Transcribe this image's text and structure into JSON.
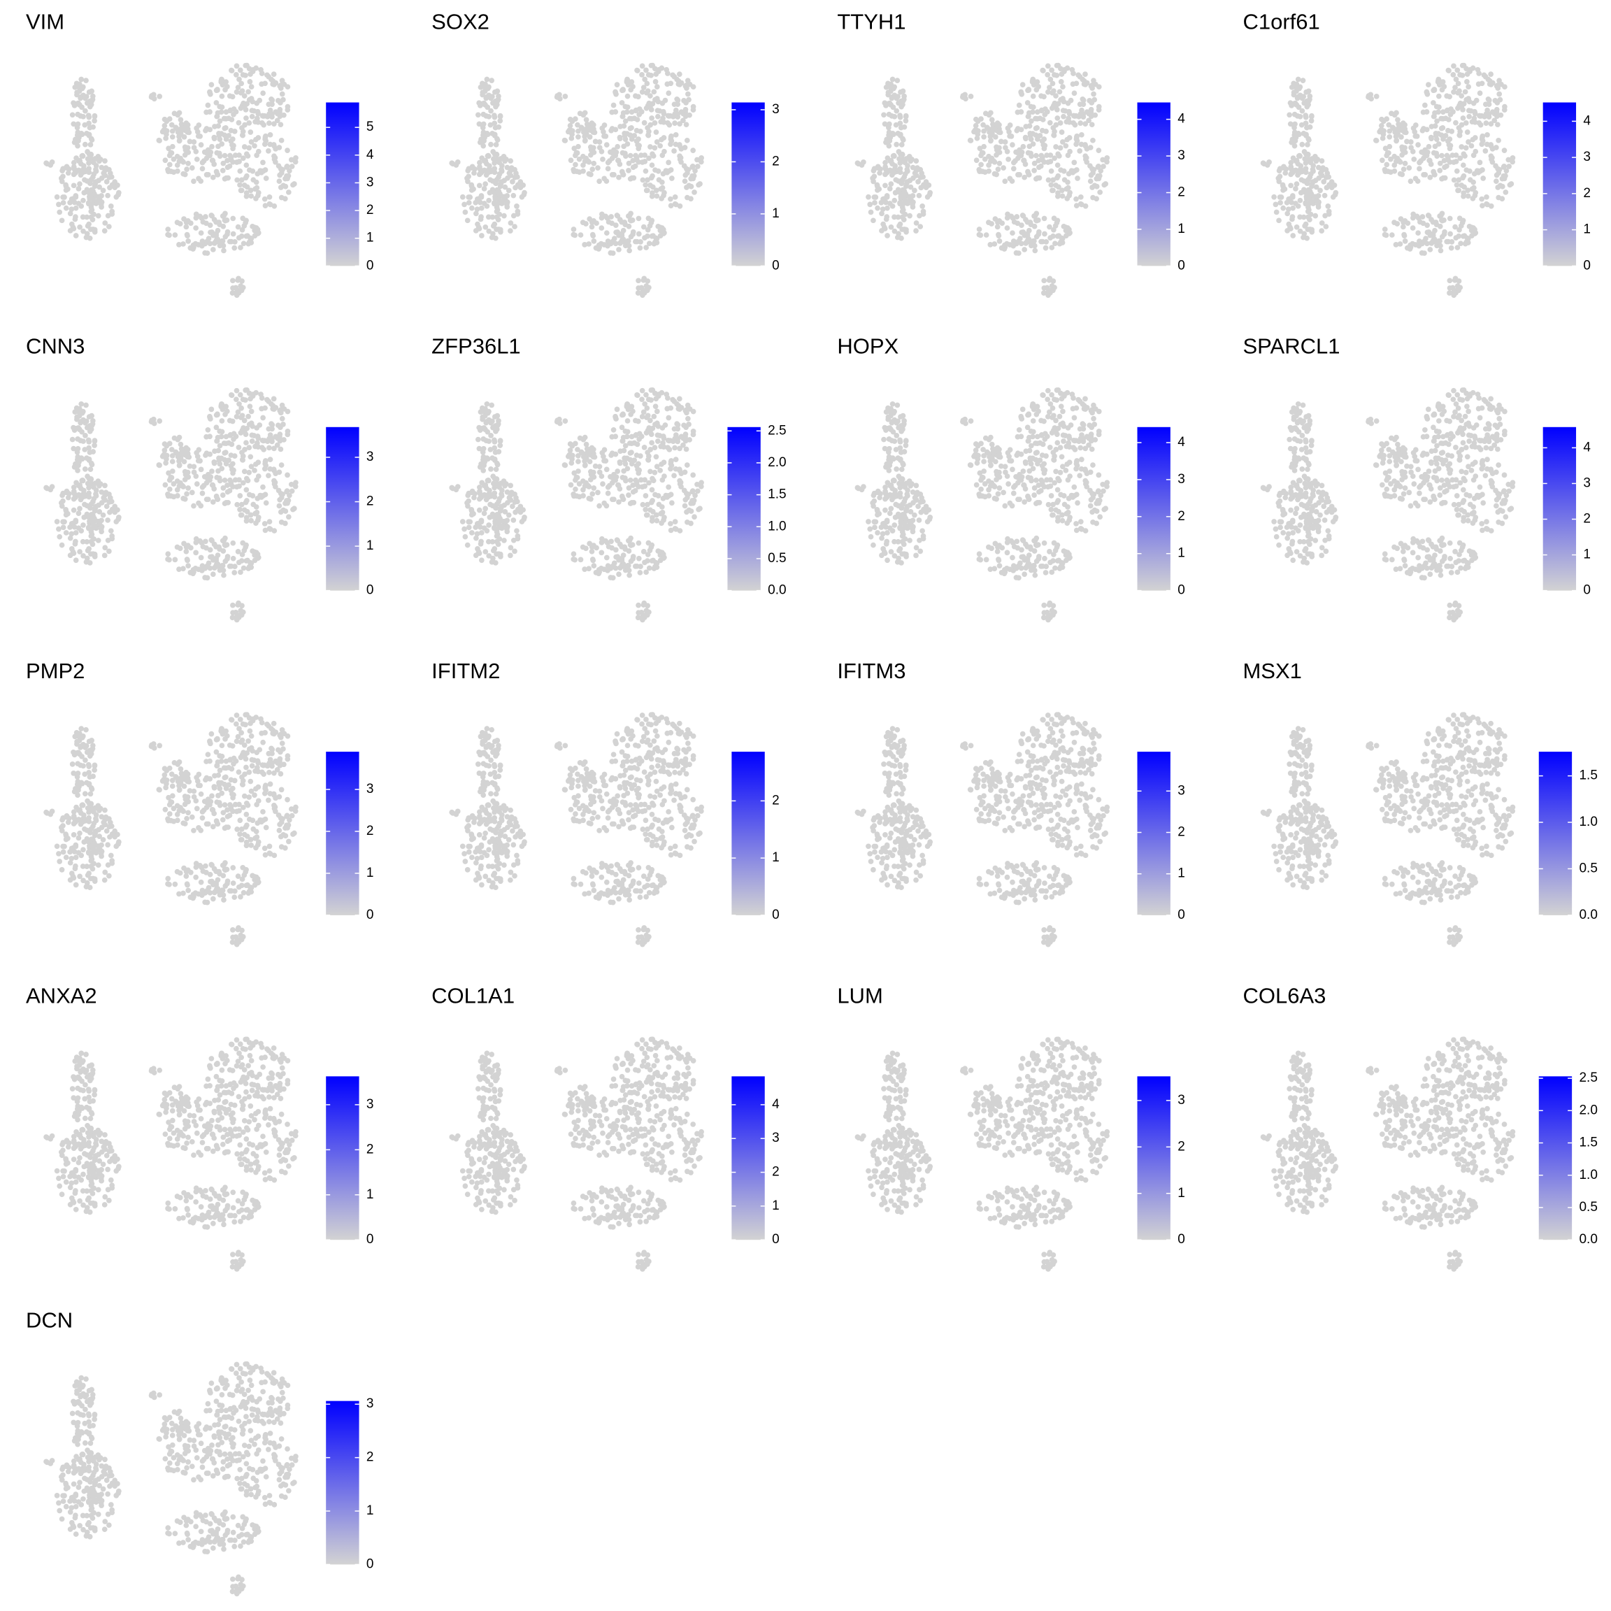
{
  "chart_data": [
    {
      "type": "scatter",
      "title": "VIM",
      "clim": [
        0,
        5.9
      ],
      "cticks": [
        0,
        1,
        2,
        3,
        4,
        5
      ],
      "colors": [
        "#d3d3d3",
        "#0000ff"
      ]
    },
    {
      "type": "scatter",
      "title": "SOX2",
      "clim": [
        0,
        3.14
      ],
      "cticks": [
        0,
        1,
        2,
        3
      ],
      "colors": [
        "#d3d3d3",
        "#0000ff"
      ]
    },
    {
      "type": "scatter",
      "title": "TTYH1",
      "clim": [
        0,
        4.46
      ],
      "cticks": [
        0,
        1,
        2,
        3,
        4
      ],
      "colors": [
        "#d3d3d3",
        "#0000ff"
      ]
    },
    {
      "type": "scatter",
      "title": "C1orf61",
      "clim": [
        0,
        4.52
      ],
      "cticks": [
        0,
        1,
        2,
        3,
        4
      ],
      "colors": [
        "#d3d3d3",
        "#0000ff"
      ]
    },
    {
      "type": "scatter",
      "title": "CNN3",
      "clim": [
        0,
        3.68
      ],
      "cticks": [
        0,
        1,
        2,
        3
      ],
      "colors": [
        "#d3d3d3",
        "#0000ff"
      ]
    },
    {
      "type": "scatter",
      "title": "ZFP36L1",
      "clim": [
        0,
        2.56
      ],
      "cticks": [
        {
          "value": 0,
          "label": "0.0"
        },
        0.5,
        {
          "value": 1,
          "label": "1.0"
        },
        1.5,
        {
          "value": 2,
          "label": "2.0"
        },
        2.5
      ],
      "colors": [
        "#d3d3d3",
        "#0000ff"
      ]
    },
    {
      "type": "scatter",
      "title": "HOPX",
      "clim": [
        0,
        4.42
      ],
      "cticks": [
        0,
        1,
        2,
        3,
        4
      ],
      "colors": [
        "#d3d3d3",
        "#0000ff"
      ]
    },
    {
      "type": "scatter",
      "title": "SPARCL1",
      "clim": [
        0,
        4.58
      ],
      "cticks": [
        0,
        1,
        2,
        3,
        4
      ],
      "colors": [
        "#d3d3d3",
        "#0000ff"
      ]
    },
    {
      "type": "scatter",
      "title": "PMP2",
      "clim": [
        0,
        3.9
      ],
      "cticks": [
        0,
        1,
        2,
        3
      ],
      "colors": [
        "#d3d3d3",
        "#0000ff"
      ]
    },
    {
      "type": "scatter",
      "title": "IFITM2",
      "clim": [
        0,
        2.86
      ],
      "cticks": [
        0,
        1,
        2
      ],
      "colors": [
        "#d3d3d3",
        "#0000ff"
      ]
    },
    {
      "type": "scatter",
      "title": "IFITM3",
      "clim": [
        0,
        3.95
      ],
      "cticks": [
        0,
        1,
        2,
        3
      ],
      "colors": [
        "#d3d3d3",
        "#0000ff"
      ]
    },
    {
      "type": "scatter",
      "title": "MSX1",
      "clim": [
        0,
        1.76
      ],
      "cticks": [
        {
          "value": 0,
          "label": "0.0"
        },
        0.5,
        {
          "value": 1,
          "label": "1.0"
        },
        1.5
      ],
      "colors": [
        "#d3d3d3",
        "#0000ff"
      ]
    },
    {
      "type": "scatter",
      "title": "ANXA2",
      "clim": [
        0,
        3.63
      ],
      "cticks": [
        0,
        1,
        2,
        3
      ],
      "colors": [
        "#d3d3d3",
        "#0000ff"
      ]
    },
    {
      "type": "scatter",
      "title": "COL1A1",
      "clim": [
        0,
        4.84
      ],
      "cticks": [
        0,
        1,
        2,
        3,
        4
      ],
      "colors": [
        "#d3d3d3",
        "#0000ff"
      ]
    },
    {
      "type": "scatter",
      "title": "LUM",
      "clim": [
        0,
        3.52
      ],
      "cticks": [
        0,
        1,
        2,
        3
      ],
      "colors": [
        "#d3d3d3",
        "#0000ff"
      ]
    },
    {
      "type": "scatter",
      "title": "COL6A3",
      "clim": [
        0,
        2.53
      ],
      "cticks": [
        {
          "value": 0,
          "label": "0.0"
        },
        0.5,
        {
          "value": 1,
          "label": "1.0"
        },
        1.5,
        {
          "value": 2,
          "label": "2.0"
        },
        2.5
      ],
      "colors": [
        "#d3d3d3",
        "#0000ff"
      ]
    },
    {
      "type": "scatter",
      "title": "DCN",
      "clim": [
        0,
        3.06
      ],
      "cticks": [
        0,
        1,
        2,
        3
      ],
      "colors": [
        "#d3d3d3",
        "#0000ff"
      ]
    }
  ]
}
